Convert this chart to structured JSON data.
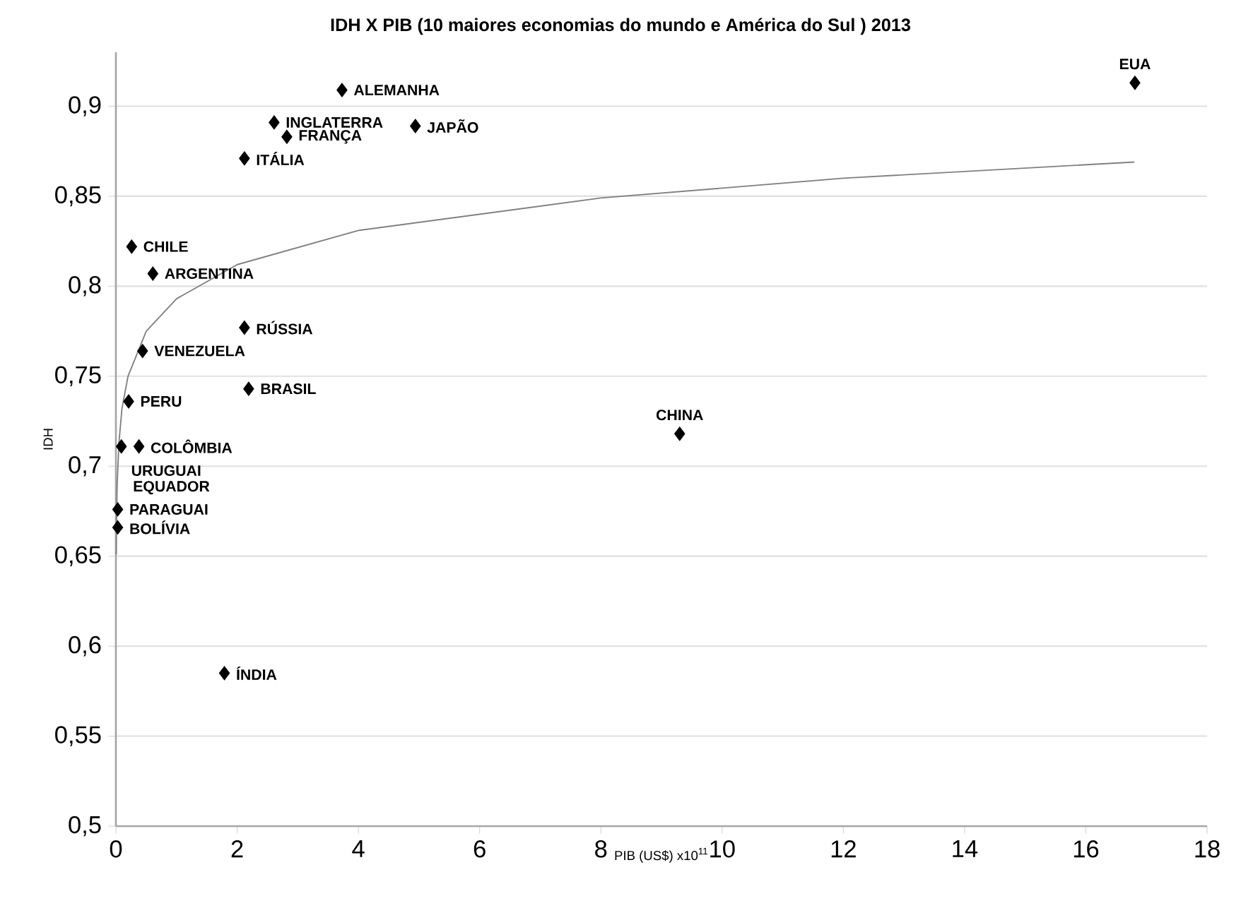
{
  "chart_data": {
    "type": "scatter",
    "title": "IDH X PIB (10 maiores economias do mundo e América do Sul ) 2013",
    "xlabel": "PIB (US$) x10$^{11}$",
    "ylabel": "IDH",
    "xlim": [
      0,
      18
    ],
    "xticks": [
      0,
      2,
      4,
      6,
      8,
      10,
      12,
      14,
      16,
      18
    ],
    "ylim": [
      0.5,
      0.93
    ],
    "yticks": [
      {
        "value": 0.5,
        "label": "0,5"
      },
      {
        "value": 0.55,
        "label": "0,55"
      },
      {
        "value": 0.6,
        "label": "0,6"
      },
      {
        "value": 0.65,
        "label": "0,65"
      },
      {
        "value": 0.7,
        "label": "0,7"
      },
      {
        "value": 0.75,
        "label": "0,75"
      },
      {
        "value": 0.8,
        "label": "0,8"
      },
      {
        "value": 0.85,
        "label": "0,85"
      },
      {
        "value": 0.9,
        "label": "0,9"
      }
    ],
    "grid": "y",
    "marker": "diamond",
    "series": [
      {
        "color": "#000000",
        "x": [
          3.73,
          2.61,
          2.82,
          4.94,
          2.12,
          16.81,
          9.3,
          0.26,
          0.61,
          2.12,
          0.44,
          2.19,
          0.21,
          0.38,
          null,
          0.09,
          0.03,
          0.03,
          1.79
        ],
        "values": [
          0.909,
          0.891,
          0.883,
          0.889,
          0.871,
          0.913,
          0.718,
          0.822,
          0.807,
          0.777,
          0.764,
          0.743,
          0.736,
          0.711,
          null,
          0.711,
          0.676,
          0.666,
          0.585
        ]
      },
      {
        "type": "line",
        "color": "#808080",
        "marker": "none",
        "line_style": "solid",
        "x": [
          0.005,
          0.01,
          0.02,
          0.05,
          0.1,
          0.2,
          0.5,
          1,
          2,
          4,
          8,
          12,
          16.8
        ],
        "values": [
          0.651,
          0.67,
          0.689,
          0.713,
          0.732,
          0.75,
          0.775,
          0.793,
          0.812,
          0.831,
          0.849,
          0.86,
          0.869
        ]
      }
    ],
    "annotations": [
      {
        "text": "ALEMANHA",
        "x": 3.73,
        "y": 0.909
      },
      {
        "text": "INGLATERRA",
        "x": 2.61,
        "y": 0.891
      },
      {
        "text": "FRANÇA",
        "x": 2.82,
        "y": 0.883
      },
      {
        "text": "JAPÃO",
        "x": 4.94,
        "y": 0.889
      },
      {
        "text": "ITÁLIA",
        "x": 2.12,
        "y": 0.871
      },
      {
        "text": "EUA",
        "x": 16.81,
        "y": 0.913
      },
      {
        "text": "CHINA",
        "x": 9.3,
        "y": 0.718
      },
      {
        "text": "CHILE",
        "x": 0.26,
        "y": 0.822
      },
      {
        "text": "ARGENTINA",
        "x": 0.61,
        "y": 0.807
      },
      {
        "text": "RÚSSIA",
        "x": 2.12,
        "y": 0.777
      },
      {
        "text": "VENEZUELA",
        "x": 0.44,
        "y": 0.764
      },
      {
        "text": "BRASIL",
        "x": 2.19,
        "y": 0.743
      },
      {
        "text": "PERU",
        "x": 0.21,
        "y": 0.736
      },
      {
        "text": "COLÔMBIA",
        "x": 0.38,
        "y": 0.711
      },
      {
        "text": "URUGUAI",
        "x": 0.06,
        "y": 0.709
      },
      {
        "text": "EQUADOR",
        "x": 0.09,
        "y": 0.711
      },
      {
        "text": "PARAGUAI",
        "x": 0.03,
        "y": 0.676
      },
      {
        "text": "BOLÍVIA",
        "x": 0.03,
        "y": 0.666
      },
      {
        "text": "ÍNDIA",
        "x": 1.79,
        "y": 0.585
      }
    ]
  }
}
